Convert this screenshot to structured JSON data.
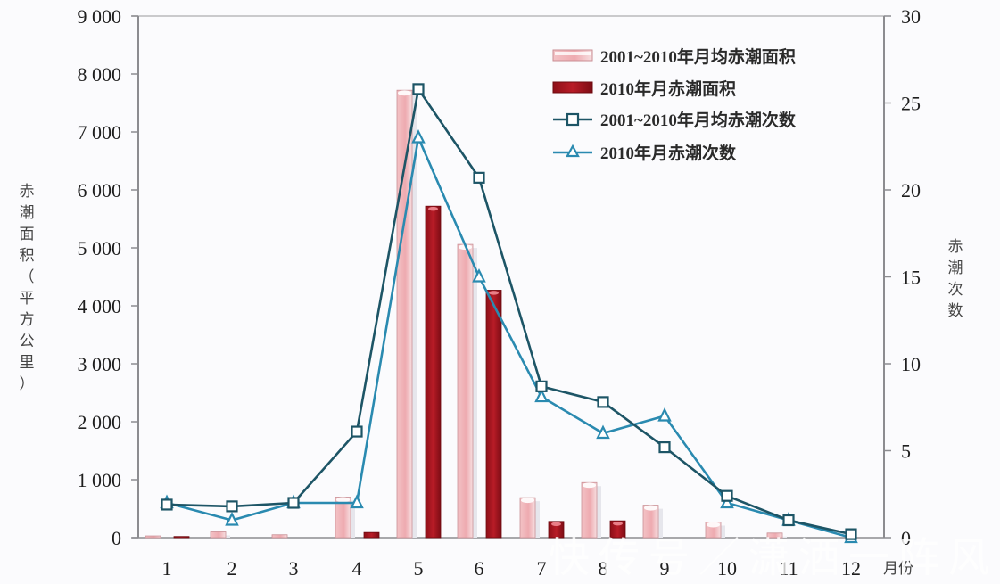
{
  "chart_data": {
    "type": "bar+line",
    "title": "",
    "categories": [
      "1",
      "2",
      "3",
      "4",
      "5",
      "6",
      "7",
      "8",
      "9",
      "10",
      "11",
      "12"
    ],
    "xlabel": "月份",
    "ylabel_left": "赤潮面积（平方公里）",
    "ylabel_right": "赤潮次数",
    "ylim_left": [
      0,
      9000
    ],
    "ylim_right": [
      0,
      30
    ],
    "left_ticks": [
      "0",
      "1 000",
      "2 000",
      "3 000",
      "4 000",
      "5 000",
      "6 000",
      "7 000",
      "8 000",
      "9 000"
    ],
    "right_ticks": [
      "0",
      "5",
      "10",
      "15",
      "20",
      "25",
      "30"
    ],
    "grid": false,
    "legend_position": "upper right",
    "series": [
      {
        "name": "2001~2010年月均赤潮面积",
        "type": "bar",
        "axis": "left",
        "color": "#f0b8bc",
        "values": [
          30,
          100,
          50,
          700,
          7720,
          5060,
          690,
          950,
          560,
          270,
          80,
          0
        ]
      },
      {
        "name": "2010年月赤潮面积",
        "type": "bar",
        "axis": "left",
        "color": "#a31620",
        "values": [
          20,
          0,
          0,
          90,
          5720,
          4270,
          280,
          290,
          0,
          0,
          0,
          0
        ]
      },
      {
        "name": "2001~2010年月均赤潮次数",
        "type": "line",
        "axis": "right",
        "marker": "square",
        "color": "#1d5566",
        "values": [
          1.9,
          1.8,
          2.0,
          6.1,
          25.8,
          20.7,
          8.7,
          7.8,
          5.2,
          2.4,
          1.0,
          0.2
        ]
      },
      {
        "name": "2010年月赤潮次数",
        "type": "line",
        "axis": "right",
        "marker": "triangle",
        "color": "#2a8ab0",
        "values": [
          2.0,
          1.0,
          2.0,
          2.0,
          23.0,
          15.0,
          8.1,
          6.0,
          7.0,
          2.0,
          1.0,
          0.0
        ]
      }
    ]
  },
  "watermark": "快传号／潇洒一阵风"
}
